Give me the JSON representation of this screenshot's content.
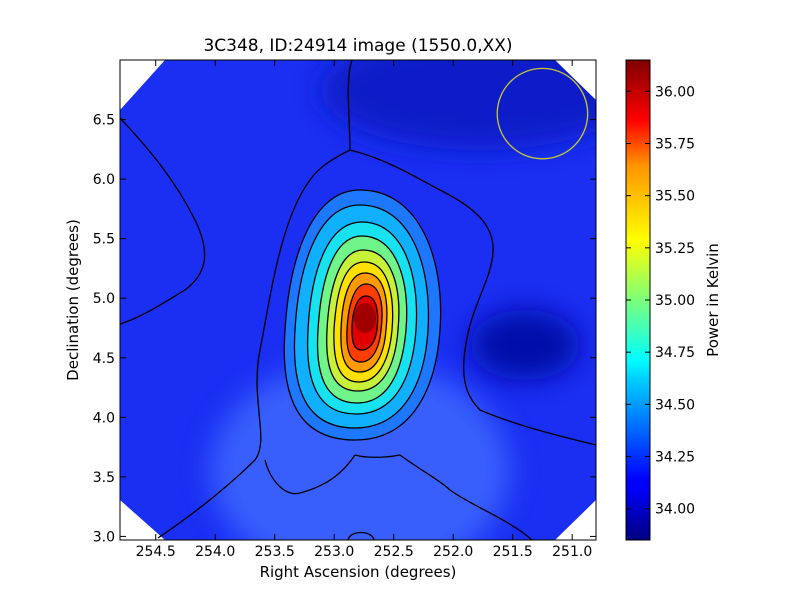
{
  "chart_data": {
    "type": "heatmap",
    "title": "3C348, ID:24914 image (1550.0,XX)",
    "xlabel": "Right Ascension (degrees)",
    "ylabel": "Declination (degrees)",
    "xlim": [
      254.8,
      250.8
    ],
    "ylim": [
      2.97,
      7.0
    ],
    "x_ticks": [
      {
        "value": 254.5,
        "label": "254.5"
      },
      {
        "value": 254.0,
        "label": "254.0"
      },
      {
        "value": 253.5,
        "label": "253.5"
      },
      {
        "value": 253.0,
        "label": "253.0"
      },
      {
        "value": 252.5,
        "label": "252.5"
      },
      {
        "value": 252.0,
        "label": "252.0"
      },
      {
        "value": 251.5,
        "label": "251.5"
      },
      {
        "value": 251.0,
        "label": "251.0"
      }
    ],
    "y_ticks": [
      {
        "value": 3.0,
        "label": "3.0"
      },
      {
        "value": 3.5,
        "label": "3.5"
      },
      {
        "value": 4.0,
        "label": "4.0"
      },
      {
        "value": 4.5,
        "label": "4.5"
      },
      {
        "value": 5.0,
        "label": "5.0"
      },
      {
        "value": 5.5,
        "label": "5.5"
      },
      {
        "value": 6.0,
        "label": "6.0"
      },
      {
        "value": 6.5,
        "label": "6.5"
      }
    ],
    "colorbar": {
      "label": "Power in Kelvin",
      "range": [
        33.85,
        36.15
      ],
      "colormap": "jet",
      "ticks": [
        {
          "value": 34.0,
          "label": "34.00"
        },
        {
          "value": 34.25,
          "label": "34.25"
        },
        {
          "value": 34.5,
          "label": "34.50"
        },
        {
          "value": 34.75,
          "label": "34.75"
        },
        {
          "value": 35.0,
          "label": "35.00"
        },
        {
          "value": 35.25,
          "label": "35.25"
        },
        {
          "value": 35.5,
          "label": "35.50"
        },
        {
          "value": 35.75,
          "label": "35.75"
        },
        {
          "value": 36.0,
          "label": "36.00"
        }
      ]
    },
    "peak": {
      "ra": 252.72,
      "dec": 4.8,
      "value": 36.15
    },
    "secondary_minimum": {
      "ra": 251.4,
      "dec": 4.6
    },
    "beam_circle": {
      "ra": 251.25,
      "dec": 6.55,
      "radius_deg": 0.38,
      "color": "#c8c832"
    },
    "grid": false,
    "legend": "none"
  }
}
